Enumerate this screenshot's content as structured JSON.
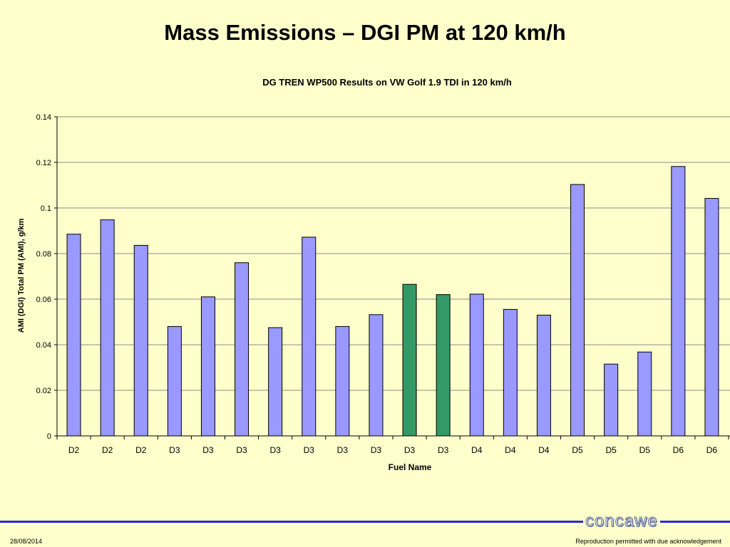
{
  "slide": {
    "title": "Mass Emissions – DGI PM at 120 km/h",
    "date": "28/08/2014",
    "note": "Reproduction permitted with due acknowledgement",
    "logo": "concawe"
  },
  "colors": {
    "background": "#ffffcc",
    "bar_default": "#9999ff",
    "bar_highlight": "#339966",
    "footer_line": "#2b2bd6"
  },
  "chart_data": {
    "type": "bar",
    "title": "DG TREN WP500 Results on VW Golf 1.9 TDI in 120 km/h",
    "xlabel": "Fuel Name",
    "ylabel": "AMI (DGI) Total PM (AMI), g/km",
    "ylim": [
      0,
      0.14
    ],
    "yticks": [
      "0",
      "0.02",
      "0.04",
      "0.06",
      "0.08",
      "0.1",
      "0.12",
      "0.14"
    ],
    "grid": true,
    "categories": [
      "D2",
      "D2",
      "D2",
      "D3",
      "D3",
      "D3",
      "D3",
      "D3",
      "D3",
      "D3",
      "D3",
      "D3",
      "D4",
      "D4",
      "D4",
      "D5",
      "D5",
      "D5",
      "D6",
      "D6"
    ],
    "values": [
      0.0885,
      0.0948,
      0.0836,
      0.048,
      0.061,
      0.076,
      0.0475,
      0.0872,
      0.048,
      0.0532,
      0.0665,
      0.062,
      0.0622,
      0.0555,
      0.053,
      0.1103,
      0.0315,
      0.0368,
      0.1182,
      0.1042
    ],
    "highlight": [
      10,
      11
    ]
  }
}
